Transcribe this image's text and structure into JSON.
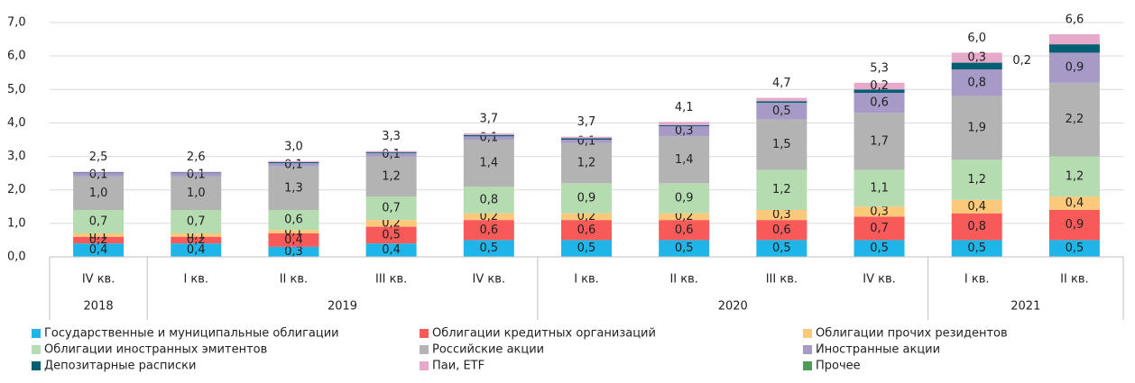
{
  "chart_data": {
    "type": "stacked_bar",
    "categories": [
      "IV кв.",
      "I кв.",
      "II кв.",
      "III кв.",
      "IV кв.",
      "I кв.",
      "II кв.",
      "III кв.",
      "IV кв.",
      "I кв.",
      "II кв."
    ],
    "groups": [
      {
        "label": "2018",
        "size": 1
      },
      {
        "label": "2019",
        "size": 4
      },
      {
        "label": "2020",
        "size": 4
      },
      {
        "label": "2021",
        "size": 2
      }
    ],
    "ylim": [
      0,
      7
    ],
    "yticks": [
      {
        "value": 0,
        "label": "0,0"
      },
      {
        "value": 1,
        "label": "1,0"
      },
      {
        "value": 2,
        "label": "2,0"
      },
      {
        "value": 3,
        "label": "3,0"
      },
      {
        "value": 4,
        "label": "4,0"
      },
      {
        "value": 5,
        "label": "5,0"
      },
      {
        "value": 6,
        "label": "6,0"
      },
      {
        "value": 7,
        "label": "7,0"
      }
    ],
    "grid": true,
    "series": [
      {
        "name": "Государственные и муниципальные облигации",
        "color": "#1fb5e8",
        "values": [
          0.4,
          0.4,
          0.3,
          0.4,
          0.5,
          0.5,
          0.5,
          0.5,
          0.5,
          0.5,
          0.5
        ],
        "value_labels": [
          "0,4",
          "0,4",
          "0,3",
          "0,4",
          "0,5",
          "0,5",
          "0,5",
          "0,5",
          "0,5",
          "0,5",
          "0,5"
        ]
      },
      {
        "name": "Облигации кредитных организаций",
        "color": "#f85a5a",
        "values": [
          0.2,
          0.2,
          0.4,
          0.5,
          0.6,
          0.6,
          0.6,
          0.6,
          0.7,
          0.8,
          0.9
        ],
        "value_labels": [
          "0,2",
          "0,2",
          "0,4",
          "0,5",
          "0,6",
          "0,6",
          "0,6",
          "0,6",
          "0,7",
          "0,8",
          "0,9"
        ]
      },
      {
        "name": "Облигации прочих резидентов",
        "color": "#fcc97a",
        "values": [
          0.1,
          0.1,
          0.1,
          0.2,
          0.2,
          0.2,
          0.2,
          0.3,
          0.3,
          0.4,
          0.4
        ],
        "value_labels": [
          "0,1",
          "0,1",
          "0,1",
          "0,2",
          "0,2",
          "0,2",
          "0,2",
          "0,3",
          "0,3",
          "0,4",
          "0,4"
        ]
      },
      {
        "name": "Облигации иностранных эмитентов",
        "color": "#b5dcb0",
        "values": [
          0.7,
          0.7,
          0.6,
          0.7,
          0.8,
          0.9,
          0.9,
          1.2,
          1.1,
          1.2,
          1.2
        ],
        "value_labels": [
          "0,7",
          "0,7",
          "0,6",
          "0,7",
          "0,8",
          "0,9",
          "0,9",
          "1,2",
          "1,1",
          "1,2",
          "1,2"
        ]
      },
      {
        "name": "Российские акции",
        "color": "#b3b3b3",
        "values": [
          1.0,
          1.0,
          1.3,
          1.2,
          1.4,
          1.2,
          1.4,
          1.5,
          1.7,
          1.9,
          2.2
        ],
        "value_labels": [
          "1,0",
          "1,0",
          "1,3",
          "1,2",
          "1,4",
          "1,2",
          "1,4",
          "1,5",
          "1,7",
          "1,9",
          "2,2"
        ]
      },
      {
        "name": "Иностранные акции",
        "color": "#a79ac7",
        "values": [
          0.1,
          0.1,
          0.1,
          0.1,
          0.1,
          0.1,
          0.3,
          0.5,
          0.6,
          0.8,
          0.9
        ],
        "value_labels": [
          "0,1",
          "0,1",
          "0,1",
          "0,1",
          "0,1",
          "0,1",
          "0,3",
          "0,5",
          "0,6",
          "0,8",
          "0,9"
        ]
      },
      {
        "name": "Депозитарные расписки",
        "color": "#005f73",
        "values": [
          0.02,
          0.02,
          0.03,
          0.03,
          0.04,
          0.04,
          0.03,
          0.05,
          0.1,
          0.2,
          0.25
        ],
        "value_labels": [
          null,
          null,
          null,
          null,
          null,
          null,
          null,
          null,
          null,
          "0,2",
          null
        ]
      },
      {
        "name": "Паи, ETF",
        "color": "#e7a9c9",
        "values": [
          0.02,
          0.02,
          0.03,
          0.03,
          0.05,
          0.05,
          0.1,
          0.1,
          0.2,
          0.3,
          0.3
        ],
        "value_labels": [
          null,
          null,
          null,
          null,
          null,
          null,
          null,
          null,
          "0,2",
          "0,3",
          null
        ]
      },
      {
        "name": "Прочее",
        "color": "#4d9a5a",
        "values": [
          0,
          0,
          0,
          0,
          0,
          0,
          0,
          0,
          0,
          0,
          0
        ],
        "value_labels": [
          null,
          null,
          null,
          null,
          null,
          null,
          null,
          null,
          null,
          null,
          null
        ]
      }
    ],
    "totals": {
      "values": [
        2.5,
        2.6,
        3.0,
        3.3,
        3.7,
        3.7,
        4.1,
        4.7,
        5.3,
        6.0,
        6.6
      ],
      "value_labels": [
        "2,5",
        "2,6",
        "3,0",
        "3,3",
        "3,7",
        "3,7",
        "4,1",
        "4,7",
        "5,3",
        "6,0",
        "6,6"
      ]
    }
  }
}
